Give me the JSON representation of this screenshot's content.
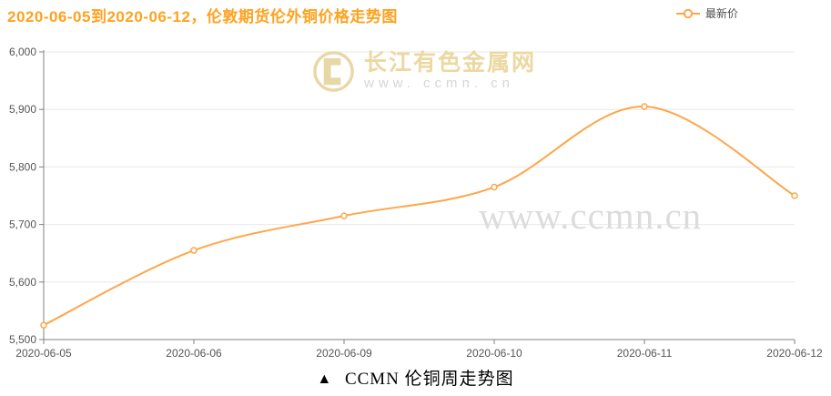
{
  "header": {
    "title": "2020-06-05到2020-06-12，伦敦期货伦外铜价格走势图"
  },
  "legend": {
    "label": "最新价",
    "marker": "line-circle-marker"
  },
  "watermark": {
    "logo_site_name": "长江有色金属网",
    "logo_url": "www. ccmn. cn",
    "center_text": "www.ccmn.cn"
  },
  "caption": {
    "marker": "▲",
    "text": "CCMN 伦铜周走势图"
  },
  "colors": {
    "title_orange": "#ffa21f",
    "line_orange": "#ffa64a",
    "axis_gray": "#808080",
    "tick_label_gray": "#555555",
    "grid_gray": "#e8e8e8",
    "watermark_gold": "#e8d8a6",
    "watermark_gray": "#dcdcdc"
  },
  "chart_data": {
    "type": "line",
    "title": "2020-06-05到2020-06-12，伦敦期货伦外铜价格走势图",
    "categories": [
      "2020-06-05",
      "2020-06-06",
      "2020-06-09",
      "2020-06-10",
      "2020-06-11",
      "2020-06-12"
    ],
    "series": [
      {
        "name": "最新价",
        "values": [
          5525,
          5655,
          5715,
          5765,
          5905,
          5750
        ]
      }
    ],
    "ylim": [
      5500,
      6000
    ],
    "yticks": [
      5500,
      5600,
      5700,
      5800,
      5900,
      6000
    ],
    "ytick_labels": [
      "5,500",
      "5,600",
      "5,700",
      "5,800",
      "5,900",
      "6,000"
    ],
    "xlabel": "",
    "ylabel": "",
    "grid": true,
    "smooth": true,
    "marker_style": "hollow-circle",
    "line_color": "#ffa64a",
    "legend_position": "top-right"
  }
}
